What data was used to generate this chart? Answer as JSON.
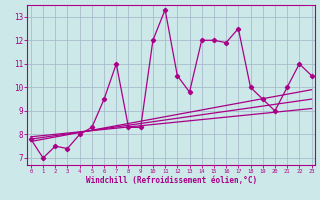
{
  "xlabel": "Windchill (Refroidissement éolien,°C)",
  "bg_color": "#cce8e8",
  "grid_color": "#aabbcc",
  "line_color": "#aa0088",
  "x_data": [
    0,
    1,
    2,
    3,
    4,
    5,
    6,
    7,
    8,
    9,
    10,
    11,
    12,
    13,
    14,
    15,
    16,
    17,
    18,
    19,
    20,
    21,
    22,
    23
  ],
  "y_main": [
    7.8,
    7.0,
    7.5,
    7.4,
    8.0,
    8.3,
    9.5,
    11.0,
    8.3,
    8.3,
    12.0,
    13.3,
    10.5,
    9.8,
    12.0,
    12.0,
    11.9,
    12.5,
    10.0,
    9.5,
    9.0,
    10.0,
    11.0,
    10.5
  ],
  "ylim": [
    6.7,
    13.5
  ],
  "xlim": [
    -0.3,
    23.3
  ],
  "yticks": [
    7,
    8,
    9,
    10,
    11,
    12,
    13
  ],
  "xticks": [
    0,
    1,
    2,
    3,
    4,
    5,
    6,
    7,
    8,
    9,
    10,
    11,
    12,
    13,
    14,
    15,
    16,
    17,
    18,
    19,
    20,
    21,
    22,
    23
  ],
  "reg_lines": [
    {
      "x0": 0,
      "x1": 23,
      "y0": 7.7,
      "y1": 9.9
    },
    {
      "x0": 0,
      "x1": 23,
      "y0": 7.8,
      "y1": 9.5
    },
    {
      "x0": 0,
      "x1": 23,
      "y0": 7.9,
      "y1": 9.1
    }
  ]
}
